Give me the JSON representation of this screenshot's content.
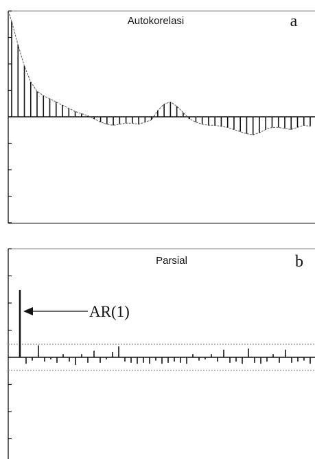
{
  "chart_data": [
    {
      "type": "bar",
      "title": "Autokorelasi",
      "panel_label": "a",
      "ylim": [
        -1,
        1
      ],
      "grid": false,
      "lags": [
        1,
        2,
        3,
        4,
        5,
        6,
        7,
        8,
        9,
        10,
        11,
        12,
        13,
        14,
        15,
        16,
        17,
        18,
        19,
        20,
        21,
        22,
        23,
        24,
        25,
        26,
        27,
        28,
        29,
        30,
        31,
        32,
        33,
        34,
        35,
        36,
        37,
        38,
        39,
        40,
        41,
        42,
        43,
        44,
        45,
        46,
        47,
        48
      ],
      "values": [
        0.9,
        0.68,
        0.48,
        0.33,
        0.24,
        0.2,
        0.17,
        0.14,
        0.11,
        0.08,
        0.05,
        0.03,
        0.01,
        -0.02,
        -0.05,
        -0.07,
        -0.08,
        -0.07,
        -0.06,
        -0.06,
        -0.07,
        -0.05,
        -0.03,
        0.06,
        0.12,
        0.14,
        0.1,
        0.04,
        -0.02,
        -0.05,
        -0.07,
        -0.08,
        -0.08,
        -0.09,
        -0.1,
        -0.12,
        -0.14,
        -0.16,
        -0.17,
        -0.15,
        -0.12,
        -0.1,
        -0.1,
        -0.11,
        -0.12,
        -0.1,
        -0.08,
        -0.09
      ]
    },
    {
      "type": "bar",
      "title": "Parsial",
      "panel_label": "b",
      "ylim": [
        -1,
        1
      ],
      "grid": false,
      "confidence_limit": 0.12,
      "annotation": "AR(1)",
      "lags": [
        1,
        2,
        3,
        4,
        5,
        6,
        7,
        8,
        9,
        10,
        11,
        12,
        13,
        14,
        15,
        16,
        17,
        18,
        19,
        20,
        21,
        22,
        23,
        24,
        25,
        26,
        27,
        28,
        29,
        30,
        31,
        32,
        33,
        34,
        35,
        36,
        37,
        38,
        39,
        40,
        41,
        42,
        43,
        44,
        45,
        46,
        47,
        48
      ],
      "values": [
        0.62,
        -0.06,
        -0.03,
        0.11,
        -0.04,
        -0.02,
        -0.05,
        0.03,
        -0.04,
        -0.07,
        0.03,
        -0.05,
        0.06,
        -0.05,
        -0.02,
        0.05,
        0.1,
        -0.04,
        -0.05,
        -0.06,
        -0.05,
        -0.06,
        -0.03,
        -0.06,
        -0.05,
        -0.04,
        -0.05,
        -0.06,
        0.03,
        -0.03,
        -0.02,
        0.03,
        -0.04,
        0.07,
        -0.05,
        -0.04,
        -0.06,
        0.08,
        -0.05,
        -0.06,
        -0.04,
        0.03,
        -0.05,
        0.07,
        -0.05,
        -0.04,
        -0.03,
        -0.06
      ]
    }
  ]
}
